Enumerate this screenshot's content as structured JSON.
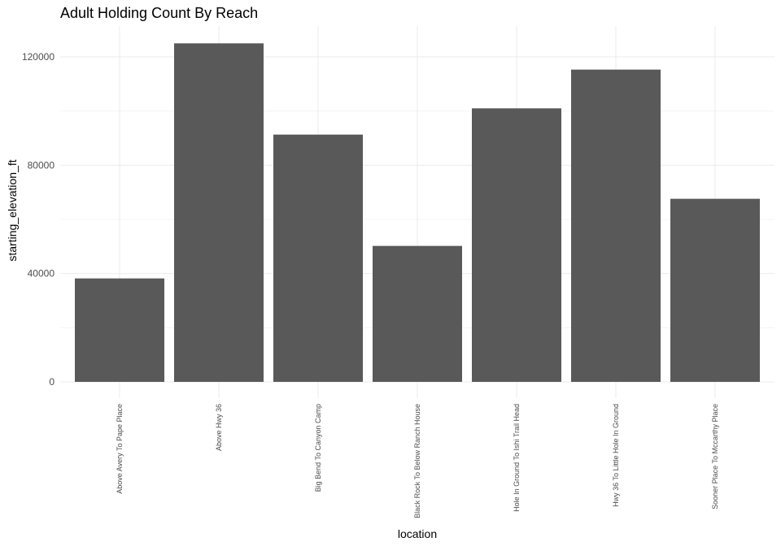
{
  "chart_data": {
    "type": "bar",
    "title": "Adult Holding Count By Reach",
    "xlabel": "location",
    "ylabel": "starting_elevation_ft",
    "categories": [
      "Above Avery To Pape Place",
      "Above Hwy 36",
      "Big Bend To Canyon Camp",
      "Black Rock To Below Ranch House",
      "Hole In Ground To Ishi Trail Head",
      "Hwy 36 To Little Hole In Ground",
      "Sooner Place To Mccarthy Place"
    ],
    "values": [
      38200,
      125000,
      91300,
      50200,
      101000,
      115300,
      67600
    ],
    "yticks": [
      0,
      40000,
      80000,
      120000
    ],
    "ytick_labels": [
      "0",
      "40000",
      "80000",
      "120000"
    ],
    "ylim": [
      0,
      130000
    ],
    "grid": true,
    "legend": "none",
    "colors": {
      "bar": "#595959",
      "grid": "#ebebeb"
    }
  }
}
